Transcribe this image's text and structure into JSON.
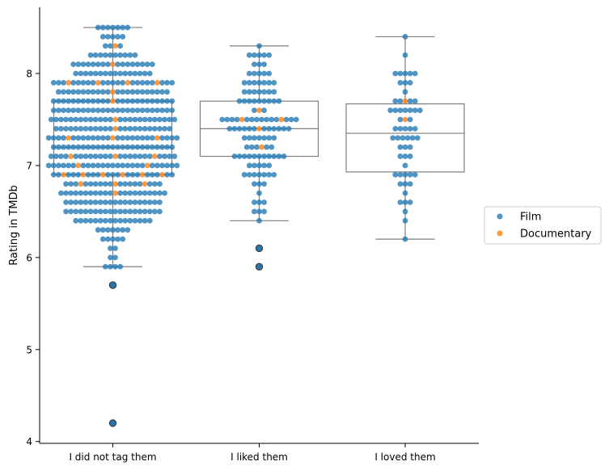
{
  "chart_data": {
    "type": "box-swarm",
    "title": "",
    "xlabel": "",
    "ylabel": "Rating in TMDb",
    "ylim": [
      3.98,
      8.72
    ],
    "yticks": [
      4,
      5,
      6,
      7,
      8
    ],
    "categories": [
      "I did not tag them",
      "I liked them",
      "I loved them"
    ],
    "boxes": [
      {
        "category": "I did not tag them",
        "whisker_low": 5.9,
        "q1": 6.9,
        "median": 7.2,
        "q3": 7.7,
        "whisker_high": 8.5,
        "outliers": [
          5.7,
          4.2
        ]
      },
      {
        "category": "I liked them",
        "whisker_low": 6.4,
        "q1": 7.1,
        "median": 7.4,
        "q3": 7.7,
        "whisker_high": 8.3,
        "outliers": [
          6.1,
          5.9
        ]
      },
      {
        "category": "I loved them",
        "whisker_low": 6.2,
        "q1": 6.93,
        "median": 7.35,
        "q3": 7.67,
        "whisker_high": 8.4,
        "outliers": []
      }
    ],
    "series": [
      {
        "name": "Film",
        "color": "#1f77b4",
        "points": {
          "I did not tag them": [
            [
              4.2,
              1
            ],
            [
              5.7,
              1
            ],
            [
              5.9,
              4
            ],
            [
              6.0,
              2
            ],
            [
              6.1,
              2
            ],
            [
              6.2,
              5
            ],
            [
              6.3,
              7
            ],
            [
              6.4,
              16
            ],
            [
              6.5,
              20
            ],
            [
              6.6,
              20
            ],
            [
              6.7,
              21
            ],
            [
              6.8,
              17
            ],
            [
              6.9,
              19
            ],
            [
              7.0,
              25
            ],
            [
              7.1,
              23
            ],
            [
              7.2,
              25
            ],
            [
              7.3,
              24
            ],
            [
              7.4,
              23
            ],
            [
              7.5,
              25
            ],
            [
              7.6,
              25
            ],
            [
              7.7,
              24
            ],
            [
              7.8,
              22
            ],
            [
              7.9,
              21
            ],
            [
              8.0,
              16
            ],
            [
              8.1,
              16
            ],
            [
              8.2,
              10
            ],
            [
              8.3,
              3
            ],
            [
              8.4,
              5
            ],
            [
              8.5,
              7
            ]
          ],
          "I liked them": [
            [
              5.9,
              1
            ],
            [
              6.1,
              1
            ],
            [
              6.4,
              1
            ],
            [
              6.5,
              3
            ],
            [
              6.6,
              3
            ],
            [
              6.7,
              1
            ],
            [
              6.8,
              3
            ],
            [
              6.9,
              7
            ],
            [
              7.0,
              5
            ],
            [
              7.1,
              11
            ],
            [
              7.2,
              5
            ],
            [
              7.3,
              7
            ],
            [
              7.4,
              12
            ],
            [
              7.5,
              14
            ],
            [
              7.6,
              2
            ],
            [
              7.7,
              9
            ],
            [
              7.8,
              7
            ],
            [
              7.9,
              7
            ],
            [
              8.0,
              5
            ],
            [
              8.1,
              3
            ],
            [
              8.2,
              5
            ],
            [
              8.3,
              1
            ]
          ],
          "I loved them": [
            [
              6.2,
              1
            ],
            [
              6.4,
              1
            ],
            [
              6.5,
              1
            ],
            [
              6.6,
              3
            ],
            [
              6.7,
              1
            ],
            [
              6.8,
              3
            ],
            [
              6.9,
              5
            ],
            [
              7.0,
              1
            ],
            [
              7.1,
              3
            ],
            [
              7.2,
              3
            ],
            [
              7.3,
              6
            ],
            [
              7.4,
              5
            ],
            [
              7.5,
              2
            ],
            [
              7.6,
              7
            ],
            [
              7.7,
              4
            ],
            [
              7.8,
              1
            ],
            [
              7.9,
              3
            ],
            [
              8.0,
              5
            ],
            [
              8.2,
              1
            ],
            [
              8.4,
              1
            ]
          ]
        }
      },
      {
        "name": "Documentary",
        "color": "#ff7f0e",
        "points": {
          "I did not tag them": [
            [
              6.7,
              1
            ],
            [
              6.8,
              3
            ],
            [
              6.9,
              6
            ],
            [
              7.0,
              2
            ],
            [
              7.1,
              3
            ],
            [
              7.3,
              3
            ],
            [
              7.4,
              1
            ],
            [
              7.5,
              1
            ],
            [
              7.7,
              1
            ],
            [
              7.8,
              1
            ],
            [
              7.9,
              4
            ],
            [
              8.1,
              1
            ],
            [
              8.3,
              1
            ]
          ],
          "I liked them": [
            [
              7.2,
              1
            ],
            [
              7.4,
              1
            ],
            [
              7.5,
              2
            ],
            [
              7.6,
              1
            ]
          ],
          "I loved them": [
            [
              7.5,
              1
            ],
            [
              7.7,
              1
            ]
          ]
        }
      }
    ],
    "legend": {
      "placement": "right-center",
      "entries": [
        "Film",
        "Documentary"
      ]
    },
    "grid": false
  }
}
